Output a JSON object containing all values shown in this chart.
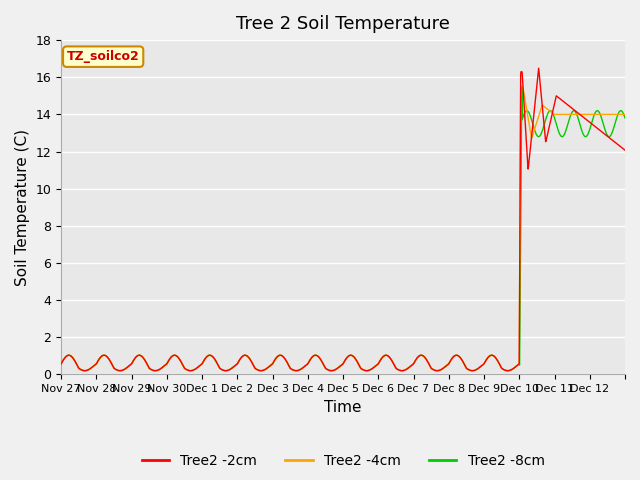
{
  "title": "Tree 2 Soil Temperature",
  "ylabel": "Soil Temperature (C)",
  "xlabel": "Time",
  "ylim": [
    0,
    18
  ],
  "yticks": [
    0,
    2,
    4,
    6,
    8,
    10,
    12,
    14,
    16,
    18
  ],
  "xtick_positions": [
    0,
    1,
    2,
    3,
    4,
    5,
    6,
    7,
    8,
    9,
    10,
    11,
    12,
    13,
    14,
    15,
    16
  ],
  "xtick_labels": [
    "Nov 27",
    "Nov 28",
    "Nov 29",
    "Nov 30",
    "Dec 1",
    "Dec 2",
    "Dec 3",
    "Dec 4",
    "Dec 5",
    "Dec 6",
    "Dec 7",
    "Dec 8",
    "Dec 9",
    "Dec 10",
    "Dec 11",
    "Dec 12",
    ""
  ],
  "legend_labels": [
    "Tree2 -2cm",
    "Tree2 -4cm",
    "Tree2 -8cm"
  ],
  "legend_colors": [
    "#ff0000",
    "#ffa500",
    "#00cc00"
  ],
  "annotation_text": "TZ_soilco2",
  "annotation_bg": "#ffffcc",
  "annotation_border": "#cc8800",
  "fig_bg_color": "#f0f0f0",
  "plot_bg_color": "#e8e8e8",
  "grid_color": "#ffffff",
  "title_fontsize": 13,
  "axis_label_fontsize": 11,
  "xlim": [
    0,
    16
  ]
}
